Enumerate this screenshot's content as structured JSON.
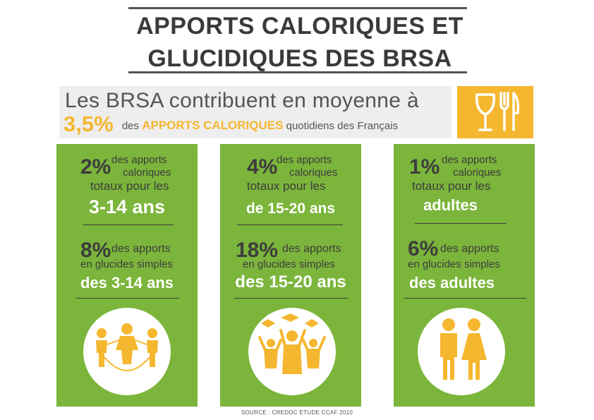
{
  "title": {
    "line1": "APPORTS CALORIQUES ET",
    "line2": "GLUCIDIQUES DES BRSA"
  },
  "intro": {
    "line1": "Les BRSA contribuent en moyenne à",
    "pct": "3,5%",
    "pre": "des",
    "highlight": "APPORTS CALORIQUES",
    "post": "quotidiens des Français",
    "icon": "utensils-glass-icon"
  },
  "colors": {
    "panel_green": "#7bb53b",
    "accent_orange": "#f5b730",
    "text_dark": "#3d3d3d"
  },
  "panels": [
    {
      "cal_pct": "2%",
      "cal_line1": "des apports",
      "cal_line2": "caloriques",
      "cal_line3": "totaux pour les",
      "cal_group": "3-14 ans",
      "glu_pct": "8%",
      "glu_line1": "des apports",
      "glu_line2": "en glucides simples",
      "glu_group": "des 3-14 ans",
      "icon": "children-jump-rope-icon"
    },
    {
      "cal_pct": "4%",
      "cal_line1": "des apports",
      "cal_line2": "caloriques",
      "cal_line3": "totaux pour les",
      "cal_group": "de 15-20 ans",
      "glu_pct": "18%",
      "glu_line1": "des apports",
      "glu_line2": "en glucides simples",
      "glu_group": "des 15-20 ans",
      "icon": "graduates-icon"
    },
    {
      "cal_pct": "1%",
      "cal_line1": "des apports",
      "cal_line2": "caloriques",
      "cal_line3": "totaux pour les",
      "cal_group": "adultes",
      "glu_pct": "6%",
      "glu_line1": "des apports",
      "glu_line2": "en glucides simples",
      "glu_group": "des adultes",
      "icon": "man-woman-icon"
    }
  ],
  "source": "SOURCE : CREDOC ETUDE CCAF 2010"
}
